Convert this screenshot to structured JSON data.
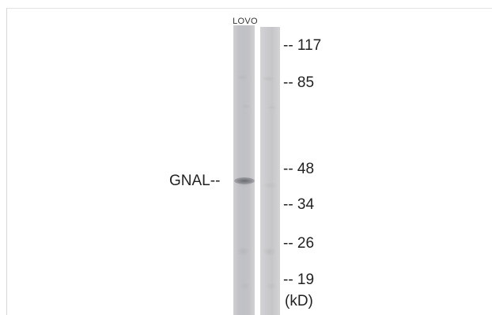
{
  "blot": {
    "lane_label": "LOVO",
    "protein_label": "GNAL--",
    "markers": [
      {
        "label": "-- 117"
      },
      {
        "label": "-- 85"
      },
      {
        "label": "-- 48"
      },
      {
        "label": "-- 34"
      },
      {
        "label": "-- 26"
      },
      {
        "label": "-- 19"
      }
    ],
    "unit_label": "(kD)"
  }
}
